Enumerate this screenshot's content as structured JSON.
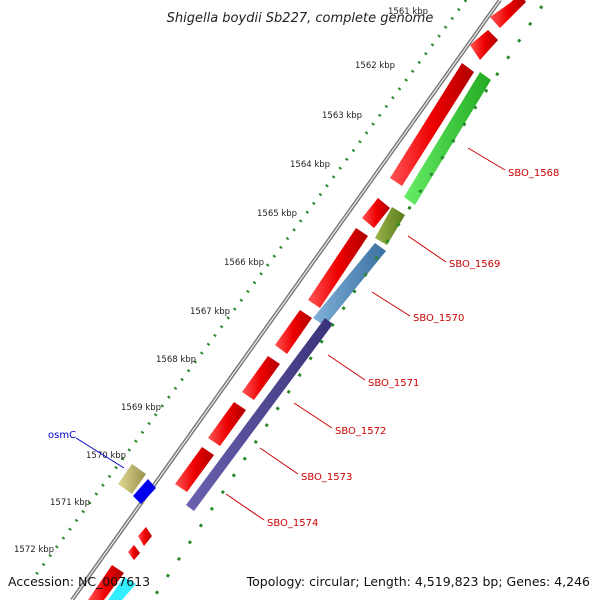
{
  "title": "Shigella boydii Sb227, complete genome",
  "footer": {
    "accession": "Accession: NC_007613",
    "summary": "Topology: circular; Length: 4,519,823 bp; Genes: 4,246"
  },
  "colors": {
    "backbone": "#7a7a7a",
    "cds_forward": "#ee0000",
    "tick_dots": "#2a8a2a",
    "label": "#cc0000",
    "osmC_label": "#0000cc"
  },
  "ticks": [
    "1561 kbp",
    "1562 kbp",
    "1563 kbp",
    "1564 kbp",
    "1565 kbp",
    "1566 kbp",
    "1567 kbp",
    "1568 kbp",
    "1569 kbp",
    "1570 kbp",
    "1571 kbp",
    "1572 kbp"
  ],
  "genes": [
    {
      "name": "SBO_1568",
      "color": "#33cc33"
    },
    {
      "name": "SBO_1569",
      "color": "#6b8e23"
    },
    {
      "name": "SBO_1570",
      "color": "#4682b4"
    },
    {
      "name": "SBO_1571",
      "color": "#483d8b"
    },
    {
      "name": "SBO_1572",
      "color": "#483d8b"
    },
    {
      "name": "SBO_1573",
      "color": "#483d8b"
    },
    {
      "name": "SBO_1574",
      "color": "#483d8b"
    },
    {
      "name": "osmC",
      "color": "#b8b070"
    }
  ]
}
